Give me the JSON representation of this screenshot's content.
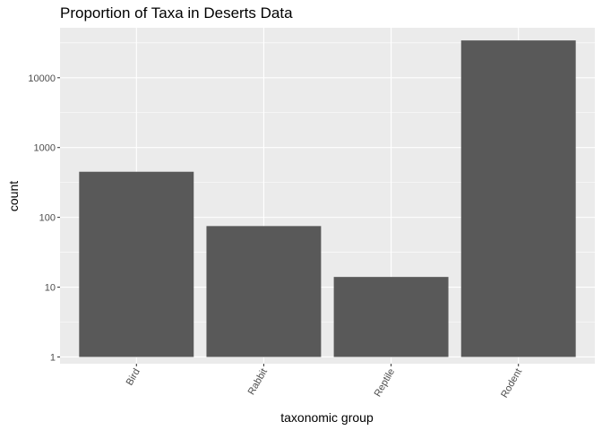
{
  "chart_data": {
    "type": "bar",
    "title": "Proportion of Taxa in Deserts Data",
    "xlabel": "taxonomic group",
    "ylabel": "count",
    "y_scale": "log10",
    "ylim": [
      0.8,
      52000
    ],
    "y_ticks": [
      1,
      10,
      100,
      1000,
      10000
    ],
    "y_tick_labels": [
      "1",
      "10",
      "100",
      "1000",
      "10000"
    ],
    "categories": [
      "Bird",
      "Rabbit",
      "Reptile",
      "Rodent"
    ],
    "values": [
      450,
      75,
      14,
      34247
    ],
    "bar_color": "#595959",
    "panel_background": "#ebebeb",
    "grid": true,
    "x_tick_rotation_deg": -60
  }
}
